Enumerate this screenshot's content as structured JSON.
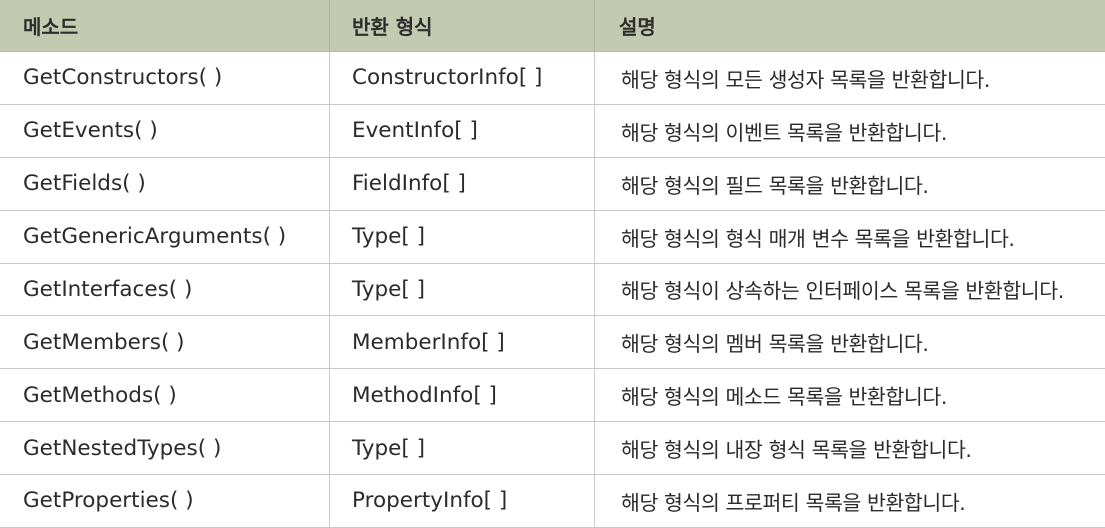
{
  "table": {
    "headers": [
      "메소드",
      "반환 형식",
      "설명"
    ],
    "rows": [
      {
        "method": "GetConstructors( )",
        "return_type": "ConstructorInfo[ ]",
        "description": "해당 형식의 모든 생성자 목록을 반환합니다."
      },
      {
        "method": "GetEvents( )",
        "return_type": "EventInfo[ ]",
        "description": "해당 형식의 이벤트 목록을 반환합니다."
      },
      {
        "method": "GetFields( )",
        "return_type": "FieldInfo[ ]",
        "description": "해당 형식의 필드 목록을 반환합니다."
      },
      {
        "method": "GetGenericArguments( )",
        "return_type": "Type[ ]",
        "description": "해당 형식의 형식 매개 변수 목록을 반환합니다."
      },
      {
        "method": "GetInterfaces( )",
        "return_type": "Type[ ]",
        "description": "해당 형식이 상속하는 인터페이스 목록을 반환합니다."
      },
      {
        "method": "GetMembers( )",
        "return_type": "MemberInfo[ ]",
        "description": "해당 형식의 멤버 목록을 반환합니다."
      },
      {
        "method": "GetMethods( )",
        "return_type": "MethodInfo[ ]",
        "description": "해당 형식의 메소드 목록을 반환합니다."
      },
      {
        "method": "GetNestedTypes( )",
        "return_type": "Type[ ]",
        "description": "해당 형식의 내장 형식 목록을 반환합니다."
      },
      {
        "method": "GetProperties( )",
        "return_type": "PropertyInfo[ ]",
        "description": "해당 형식의 프로퍼티 목록을 반환합니다."
      }
    ]
  },
  "colors": {
    "header_bg": "#c4c9b1",
    "grid_line": "#c9c9c9",
    "text": "#2b2b2b"
  }
}
